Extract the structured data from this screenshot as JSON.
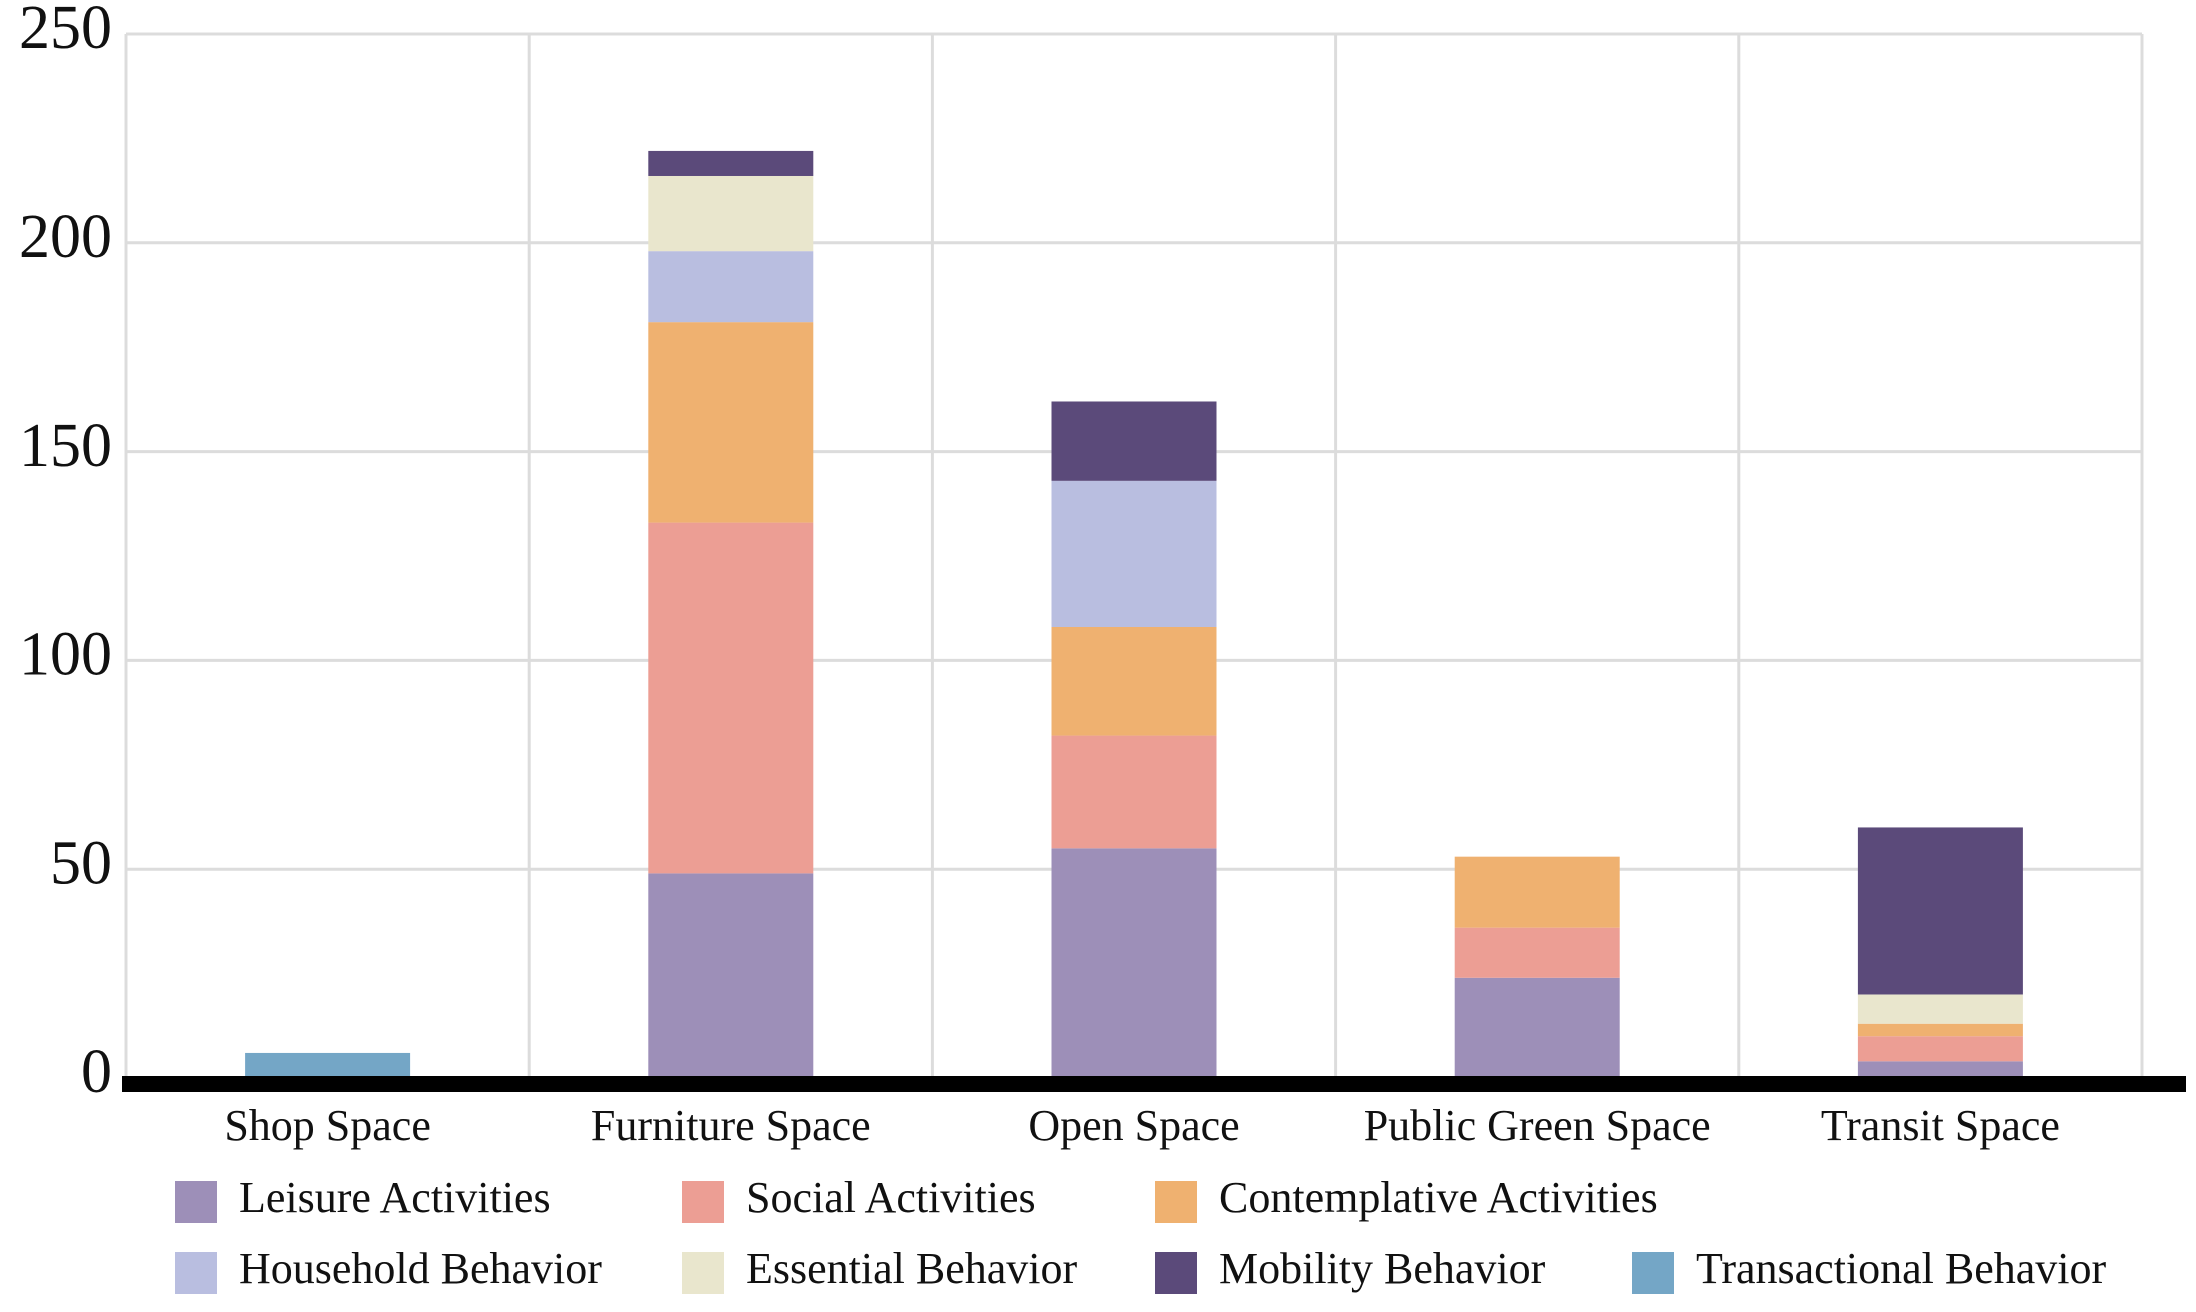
{
  "chart_data": {
    "type": "stacked-bar",
    "categories": [
      "Shop Space",
      "Furniture Space",
      "Open Space",
      "Public Green Space",
      "Transit Space"
    ],
    "series": [
      {
        "name": "Leisure Activities",
        "color": "#9d8fb8",
        "values": [
          0,
          49,
          55,
          24,
          4
        ]
      },
      {
        "name": "Social Activities",
        "color": "#ec9e94",
        "values": [
          0,
          84,
          27,
          12,
          6
        ]
      },
      {
        "name": "Contemplative Activities",
        "color": "#efb170",
        "values": [
          0,
          48,
          26,
          17,
          3
        ]
      },
      {
        "name": "Household Behavior",
        "color": "#b9bee0",
        "values": [
          0,
          17,
          35,
          0,
          0
        ]
      },
      {
        "name": "Essential Behavior",
        "color": "#e9e6cd",
        "values": [
          0,
          18,
          0,
          0,
          7
        ]
      },
      {
        "name": "Mobility Behavior",
        "color": "#5b4a7a",
        "values": [
          0,
          6,
          19,
          0,
          40
        ]
      },
      {
        "name": "Transactional Behavior",
        "color": "#74a6c6",
        "values": [
          6,
          0,
          0,
          0,
          0
        ]
      }
    ],
    "ylim": [
      0,
      250
    ],
    "yticks": [
      0,
      50,
      100,
      150,
      200,
      250
    ],
    "grid": true
  }
}
